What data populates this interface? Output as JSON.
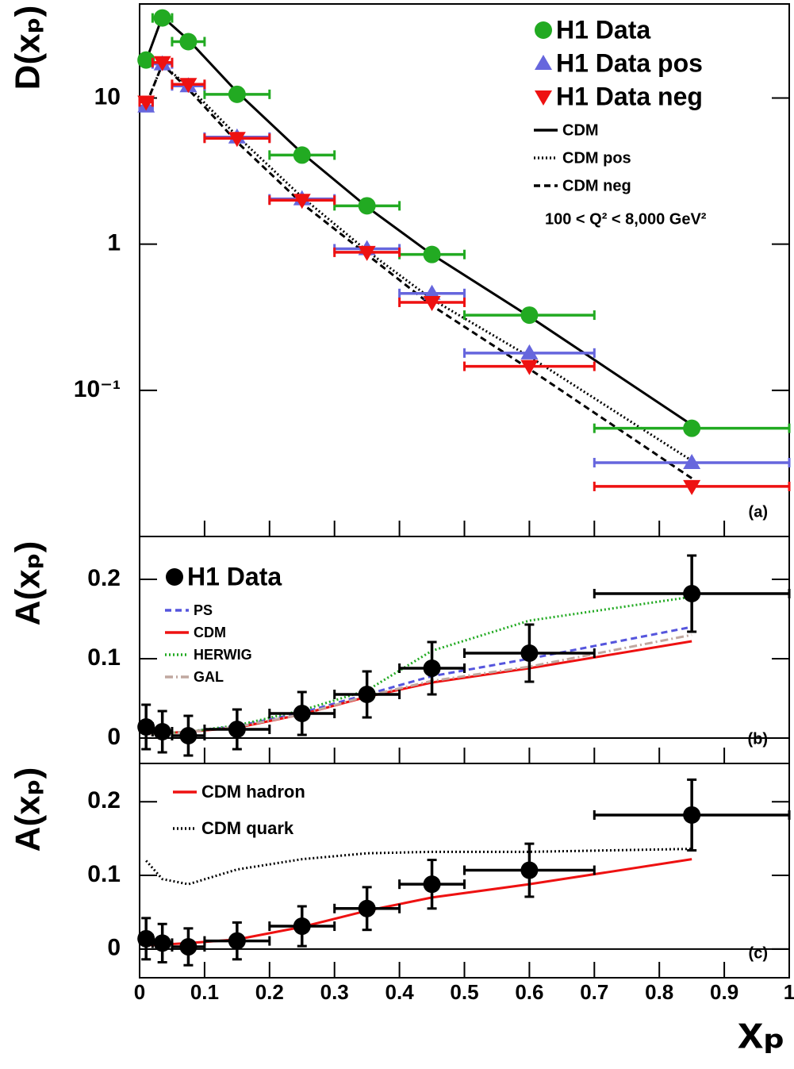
{
  "chart_data": [
    {
      "type": "scatter",
      "log_y": true,
      "annotation": "(a)",
      "ylabel": "D(xₚ)",
      "legend": "upper right",
      "note": "100 < Q² < 8,000 GeV²",
      "xlim": [
        0,
        1
      ],
      "ylim": [
        0.01,
        44
      ],
      "yticks": [
        {
          "value": 0.1,
          "label": "10⁻¹"
        },
        1,
        10
      ],
      "x": [
        0.01,
        0.035,
        0.075,
        0.15,
        0.25,
        0.35,
        0.45,
        0.6,
        0.85
      ],
      "bins": [
        0,
        0.02,
        0.05,
        0.1,
        0.2,
        0.3,
        0.4,
        0.5,
        0.7,
        1.0
      ],
      "series": [
        {
          "name": "H1 Data",
          "color": "#22aa22",
          "marker": "circle",
          "values": [
            18.2,
            35.3,
            24.3,
            10.6,
            4.07,
            1.83,
            0.85,
            0.327,
            0.055
          ]
        },
        {
          "name": "H1 Data pos",
          "color": "#6666dd",
          "marker": "triangle-up",
          "values": [
            8.8,
            17.1,
            12.1,
            5.4,
            2.04,
            0.93,
            0.46,
            0.18,
            0.032
          ]
        },
        {
          "name": "H1 Data neg",
          "color": "#ee1111",
          "marker": "triangle-down",
          "values": [
            9.4,
            17.5,
            12.4,
            5.3,
            2.0,
            0.88,
            0.4,
            0.146,
            0.022
          ]
        }
      ],
      "lines": [
        {
          "name": "CDM",
          "color": "#000000",
          "dash": "solid",
          "x": [
            0.01,
            0.035,
            0.075,
            0.15,
            0.25,
            0.35,
            0.45,
            0.6,
            0.85
          ],
          "values": [
            18,
            36,
            25,
            11,
            4.2,
            1.8,
            0.85,
            0.32,
            0.058
          ]
        },
        {
          "name": "CDM pos",
          "color": "#000000",
          "dash": "dotted",
          "x": [
            0.01,
            0.035,
            0.075,
            0.15,
            0.25,
            0.35,
            0.45,
            0.6,
            0.85
          ],
          "values": [
            9,
            17,
            12,
            5.5,
            2.1,
            0.9,
            0.42,
            0.17,
            0.033
          ]
        },
        {
          "name": "CDM neg",
          "color": "#000000",
          "dash": "dashed",
          "x": [
            0.01,
            0.035,
            0.075,
            0.15,
            0.25,
            0.35,
            0.45,
            0.6,
            0.85
          ],
          "values": [
            9,
            17,
            11.5,
            5,
            1.9,
            0.85,
            0.38,
            0.14,
            0.025
          ]
        }
      ]
    },
    {
      "type": "scatter",
      "log_y": false,
      "annotation": "(b)",
      "ylabel": "A(xₚ)",
      "legend": "upper left",
      "xlim": [
        0,
        1
      ],
      "ylim": [
        -0.032,
        0.254
      ],
      "yticks": [
        0,
        0.1,
        0.2
      ],
      "x": [
        0.01,
        0.035,
        0.075,
        0.15,
        0.25,
        0.35,
        0.45,
        0.6,
        0.85
      ],
      "bins": [
        0,
        0.02,
        0.05,
        0.1,
        0.2,
        0.3,
        0.4,
        0.5,
        0.7,
        1.0
      ],
      "series": [
        {
          "name": "H1 Data",
          "color": "#000000",
          "marker": "circle",
          "values": [
            0.014,
            0.008,
            0.003,
            0.011,
            0.031,
            0.055,
            0.088,
            0.107,
            0.182
          ],
          "errors": [
            0.028,
            0.026,
            0.025,
            0.025,
            0.027,
            0.029,
            0.033,
            0.036,
            0.048
          ]
        }
      ],
      "lines": [
        {
          "name": "PS",
          "color": "#5555dd",
          "dash": "dashed",
          "x": [
            0.01,
            0.035,
            0.075,
            0.15,
            0.25,
            0.35,
            0.45,
            0.6,
            0.85
          ],
          "values": [
            0.005,
            0.006,
            0.008,
            0.015,
            0.032,
            0.055,
            0.078,
            0.1,
            0.14
          ]
        },
        {
          "name": "CDM",
          "color": "#ee1111",
          "dash": "solid",
          "x": [
            0.01,
            0.035,
            0.075,
            0.15,
            0.25,
            0.35,
            0.45,
            0.6,
            0.85
          ],
          "values": [
            0.005,
            0.006,
            0.008,
            0.013,
            0.03,
            0.052,
            0.07,
            0.088,
            0.122
          ]
        },
        {
          "name": "HERWIG",
          "color": "#22aa22",
          "dash": "dotted",
          "x": [
            0.01,
            0.035,
            0.075,
            0.15,
            0.25,
            0.35,
            0.45,
            0.6,
            0.85
          ],
          "values": [
            0.005,
            0.006,
            0.008,
            0.016,
            0.035,
            0.06,
            0.11,
            0.148,
            0.178
          ]
        },
        {
          "name": "GAL",
          "color": "#c0a8a0",
          "dash": "dashdot",
          "x": [
            0.01,
            0.035,
            0.075,
            0.15,
            0.25,
            0.35,
            0.45,
            0.6,
            0.85
          ],
          "values": [
            0.005,
            0.006,
            0.008,
            0.014,
            0.03,
            0.053,
            0.072,
            0.09,
            0.13
          ]
        }
      ]
    },
    {
      "type": "scatter",
      "log_y": false,
      "annotation": "(c)",
      "ylabel": "A(xₚ)",
      "xlabel": "xₚ",
      "legend": "upper left",
      "xlim": [
        0,
        1
      ],
      "ylim": [
        -0.039,
        0.252
      ],
      "yticks": [
        0,
        0.1,
        0.2
      ],
      "xticks": [
        0,
        0.1,
        0.2,
        0.3,
        0.4,
        0.5,
        0.6,
        0.7,
        0.8,
        0.9,
        1
      ],
      "x": [
        0.01,
        0.035,
        0.075,
        0.15,
        0.25,
        0.35,
        0.45,
        0.6,
        0.85
      ],
      "bins": [
        0,
        0.02,
        0.05,
        0.1,
        0.2,
        0.3,
        0.4,
        0.5,
        0.7,
        1.0
      ],
      "series": [
        {
          "color": "#000000",
          "marker": "circle",
          "values": [
            0.014,
            0.008,
            0.003,
            0.011,
            0.031,
            0.055,
            0.088,
            0.107,
            0.182
          ],
          "errors": [
            0.028,
            0.026,
            0.025,
            0.025,
            0.027,
            0.029,
            0.033,
            0.036,
            0.048
          ]
        }
      ],
      "lines": [
        {
          "name": "CDM hadron",
          "color": "#ee1111",
          "dash": "solid",
          "x": [
            0.01,
            0.035,
            0.075,
            0.15,
            0.25,
            0.35,
            0.45,
            0.6,
            0.85
          ],
          "values": [
            0.005,
            0.006,
            0.008,
            0.013,
            0.03,
            0.052,
            0.07,
            0.088,
            0.122
          ]
        },
        {
          "name": "CDM quark",
          "color": "#000000",
          "dash": "dotted",
          "x": [
            0.01,
            0.035,
            0.075,
            0.15,
            0.25,
            0.35,
            0.45,
            0.6,
            0.85
          ],
          "values": [
            0.12,
            0.095,
            0.088,
            0.108,
            0.122,
            0.13,
            0.132,
            0.132,
            0.136
          ]
        }
      ]
    }
  ]
}
